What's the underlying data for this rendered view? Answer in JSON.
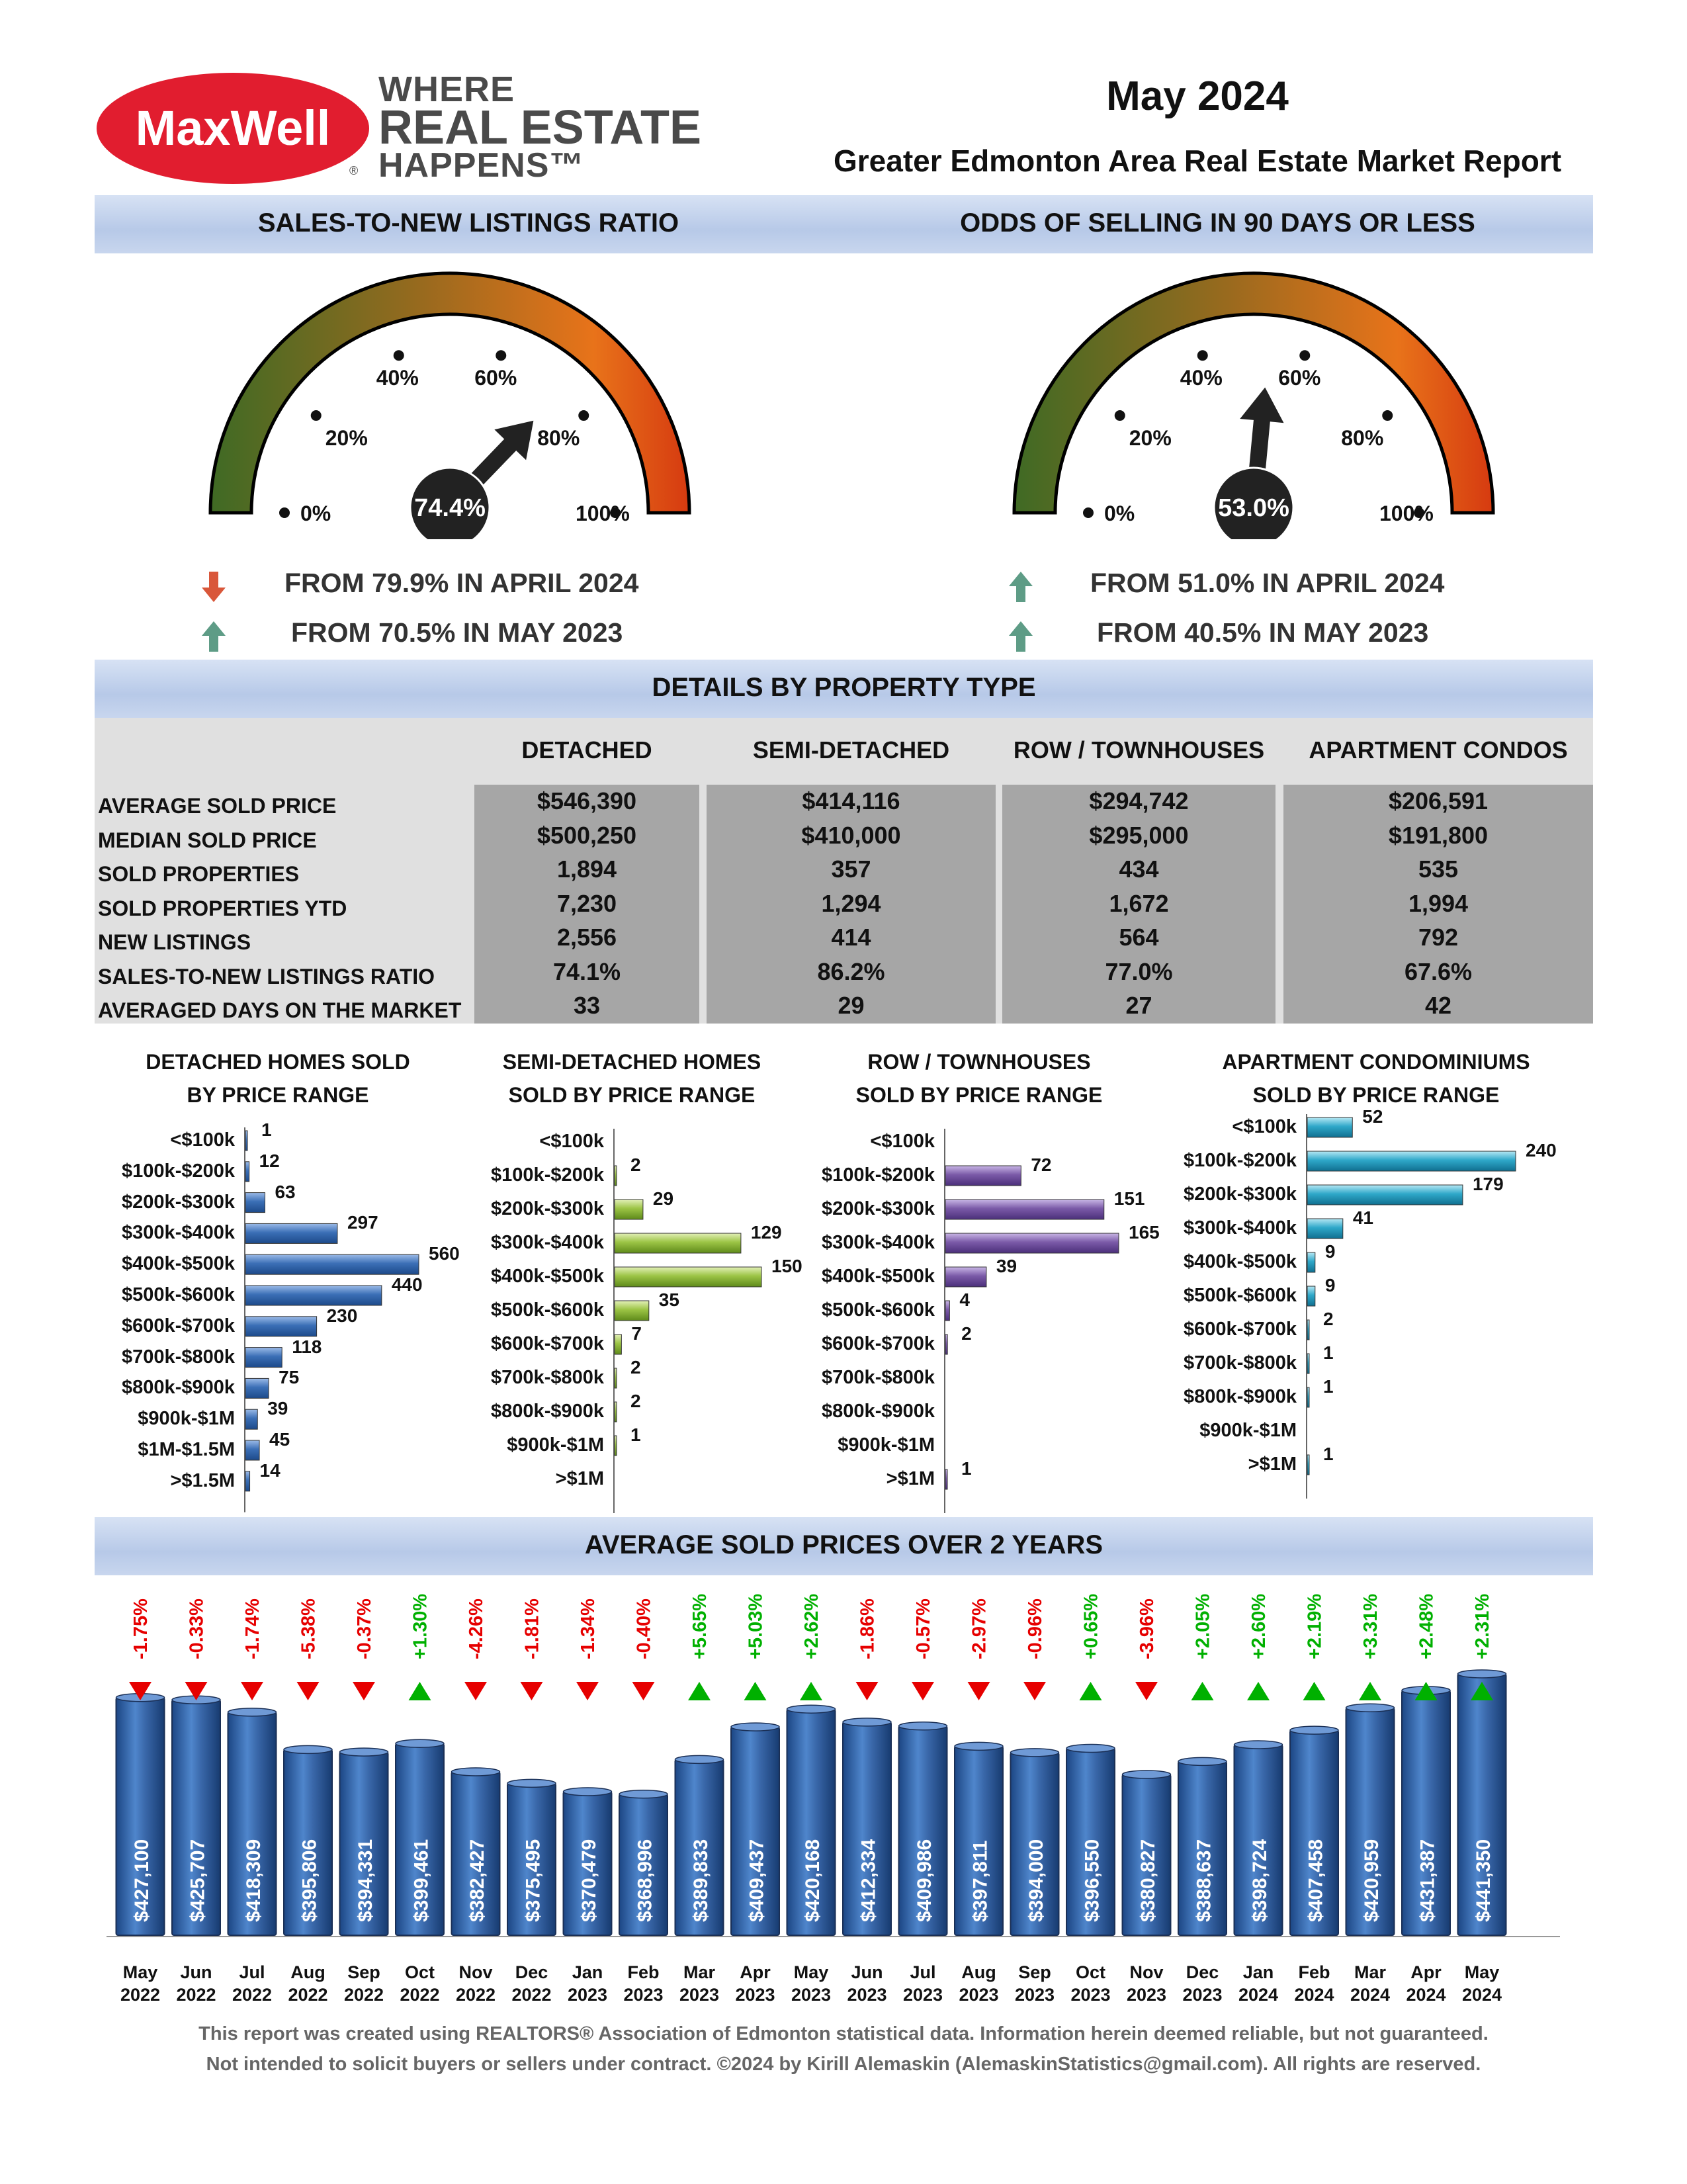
{
  "header": {
    "logo_text": "MaxWell",
    "tagline": [
      "WHERE",
      "REAL ESTATE",
      "HAPPENS™"
    ],
    "month": "May 2024",
    "subtitle": "Greater Edmonton Area Real Estate Market Report"
  },
  "gauges": [
    {
      "title": "SALES-TO-NEW LISTINGS RATIO",
      "value": 74.4,
      "value_label": "74.4%",
      "tick_labels": [
        "0%",
        "20%",
        "40%",
        "60%",
        "80%",
        "100%"
      ],
      "changes": [
        {
          "direction": "down",
          "text": "FROM 79.9% IN APRIL 2024"
        },
        {
          "direction": "up",
          "text": "FROM 70.5% IN MAY 2023"
        }
      ]
    },
    {
      "title": "ODDS OF SELLING IN 90 DAYS OR LESS",
      "value": 53.0,
      "value_label": "53.0%",
      "tick_labels": [
        "0%",
        "20%",
        "40%",
        "60%",
        "80%",
        "100%"
      ],
      "changes": [
        {
          "direction": "up",
          "text": "FROM 51.0% IN APRIL 2024"
        },
        {
          "direction": "up",
          "text": "FROM 40.5% IN MAY 2023"
        }
      ]
    }
  ],
  "colors": {
    "band": "#c6d5ee",
    "up_arrow": "#5e9c86",
    "down_arrow": "#d9573a",
    "detached_bar": "#3b6fb6",
    "semi_bar": "#9cc445",
    "row_bar": "#7b5aa8",
    "apt_bar": "#2fa8c9",
    "avg_bar": "#3a68aa",
    "positive": "#00b000",
    "negative": "#e60000"
  },
  "details": {
    "title": "DETAILS BY PROPERTY TYPE",
    "columns": [
      "DETACHED",
      "SEMI-DETACHED",
      "ROW / TOWNHOUSES",
      "APARTMENT CONDOS"
    ],
    "rows": [
      {
        "label": "AVERAGE SOLD PRICE",
        "values": [
          "$546,390",
          "$414,116",
          "$294,742",
          "$206,591"
        ]
      },
      {
        "label": "MEDIAN SOLD PRICE",
        "values": [
          "$500,250",
          "$410,000",
          "$295,000",
          "$191,800"
        ]
      },
      {
        "label": "SOLD PROPERTIES",
        "values": [
          "1,894",
          "357",
          "434",
          "535"
        ]
      },
      {
        "label": "SOLD PROPERTIES YTD",
        "values": [
          "7,230",
          "1,294",
          "1,672",
          "1,994"
        ]
      },
      {
        "label": "NEW LISTINGS",
        "values": [
          "2,556",
          "414",
          "564",
          "792"
        ]
      },
      {
        "label": "SALES-TO-NEW LISTINGS RATIO",
        "values": [
          "74.1%",
          "86.2%",
          "77.0%",
          "67.6%"
        ]
      },
      {
        "label": "AVERAGED DAYS ON THE MARKET",
        "values": [
          "33",
          "29",
          "27",
          "42"
        ]
      }
    ]
  },
  "avg_title": "AVERAGE SOLD PRICES OVER 2 YEARS",
  "footer": [
    "This report was created using REALTORS® Association of Edmonton statistical data. Information herein deemed reliable, but not guaranteed.",
    "Not intended to solicit buyers or sellers under contract. ©2024 by Kirill Alemaskin (AlemaskinStatistics@gmail.com). All rights are reserved."
  ],
  "chart_data": [
    {
      "type": "bar",
      "orientation": "horizontal",
      "title": "DETACHED HOMES SOLD BY PRICE RANGE",
      "categories": [
        "<$100k",
        "$100k-$200k",
        "$200k-$300k",
        "$300k-$400k",
        "$400k-$500k",
        "$500k-$600k",
        "$600k-$700k",
        "$700k-$800k",
        "$800k-$900k",
        "$900k-$1M",
        "$1M-$1.5M",
        ">$1.5M"
      ],
      "values": [
        1,
        12,
        63,
        297,
        560,
        440,
        230,
        118,
        75,
        39,
        45,
        14
      ],
      "xlim": [
        0,
        560
      ]
    },
    {
      "type": "bar",
      "orientation": "horizontal",
      "title": "SEMI-DETACHED HOMES SOLD BY PRICE RANGE",
      "categories": [
        "<$100k",
        "$100k-$200k",
        "$200k-$300k",
        "$300k-$400k",
        "$400k-$500k",
        "$500k-$600k",
        "$600k-$700k",
        "$700k-$800k",
        "$800k-$900k",
        "$900k-$1M",
        ">$1M"
      ],
      "values": [
        null,
        2,
        29,
        129,
        150,
        35,
        7,
        2,
        2,
        1,
        null
      ],
      "xlim": [
        0,
        150
      ]
    },
    {
      "type": "bar",
      "orientation": "horizontal",
      "title": "ROW / TOWNHOUSES SOLD BY PRICE RANGE",
      "categories": [
        "<$100k",
        "$100k-$200k",
        "$200k-$300k",
        "$300k-$400k",
        "$400k-$500k",
        "$500k-$600k",
        "$600k-$700k",
        "$700k-$800k",
        "$800k-$900k",
        "$900k-$1M",
        ">$1M"
      ],
      "values": [
        null,
        72,
        151,
        165,
        39,
        4,
        2,
        null,
        null,
        null,
        1
      ],
      "xlim": [
        0,
        165
      ]
    },
    {
      "type": "bar",
      "orientation": "horizontal",
      "title": "APARTMENT CONDOMINIUMS SOLD BY PRICE RANGE",
      "categories": [
        "<$100k",
        "$100k-$200k",
        "$200k-$300k",
        "$300k-$400k",
        "$400k-$500k",
        "$500k-$600k",
        "$600k-$700k",
        "$700k-$800k",
        "$800k-$900k",
        "$900k-$1M",
        ">$1M"
      ],
      "values": [
        52,
        240,
        179,
        41,
        9,
        9,
        2,
        1,
        1,
        null,
        1
      ],
      "xlim": [
        0,
        240
      ]
    },
    {
      "type": "bar",
      "title": "AVERAGE SOLD PRICES OVER 2 YEARS",
      "categories": [
        [
          "May",
          "2022"
        ],
        [
          "Jun",
          "2022"
        ],
        [
          "Jul",
          "2022"
        ],
        [
          "Aug",
          "2022"
        ],
        [
          "Sep",
          "2022"
        ],
        [
          "Oct",
          "2022"
        ],
        [
          "Nov",
          "2022"
        ],
        [
          "Dec",
          "2022"
        ],
        [
          "Jan",
          "2023"
        ],
        [
          "Feb",
          "2023"
        ],
        [
          "Mar",
          "2023"
        ],
        [
          "Apr",
          "2023"
        ],
        [
          "May",
          "2023"
        ],
        [
          "Jun",
          "2023"
        ],
        [
          "Jul",
          "2023"
        ],
        [
          "Aug",
          "2023"
        ],
        [
          "Sep",
          "2023"
        ],
        [
          "Oct",
          "2023"
        ],
        [
          "Nov",
          "2023"
        ],
        [
          "Dec",
          "2023"
        ],
        [
          "Jan",
          "2024"
        ],
        [
          "Feb",
          "2024"
        ],
        [
          "Mar",
          "2024"
        ],
        [
          "Apr",
          "2024"
        ],
        [
          "May",
          "2024"
        ]
      ],
      "values": [
        427100,
        425707,
        418309,
        395806,
        394331,
        399461,
        382427,
        375495,
        370479,
        368996,
        389833,
        409437,
        420168,
        412334,
        409986,
        397811,
        394000,
        396550,
        380827,
        388637,
        398724,
        407458,
        420959,
        431387,
        441350
      ],
      "value_labels": [
        "$427,100",
        "$425,707",
        "$418,309",
        "$395,806",
        "$394,331",
        "$399,461",
        "$382,427",
        "$375,495",
        "$370,479",
        "$368,996",
        "$389,833",
        "$409,437",
        "$420,168",
        "$412,334",
        "$409,986",
        "$397,811",
        "$394,000",
        "$396,550",
        "$380,827",
        "$388,637",
        "$398,724",
        "$407,458",
        "$420,959",
        "$431,387",
        "$441,350"
      ],
      "pct_change_labels": [
        "-1.75%",
        "-0.33%",
        "-1.74%",
        "-5.38%",
        "-0.37%",
        "+1.30%",
        "-4.26%",
        "-1.81%",
        "-1.34%",
        "-0.40%",
        "+5.65%",
        "+5.03%",
        "+2.62%",
        "-1.86%",
        "-0.57%",
        "-2.97%",
        "-0.96%",
        "+0.65%",
        "-3.96%",
        "+2.05%",
        "+2.60%",
        "+2.19%",
        "+3.31%",
        "+2.48%",
        "+2.31%"
      ]
    }
  ]
}
